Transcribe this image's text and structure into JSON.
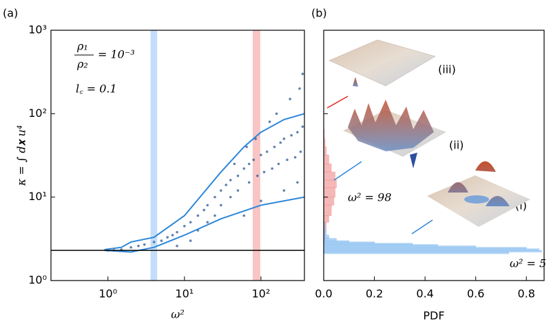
{
  "chart_data": [
    {
      "type": "scatter",
      "panel_label": "(a)",
      "x_label": "ω²",
      "y_label": "κ = ∫ d𝐱 u⁴",
      "annotations": {
        "numerator": "ρ₁",
        "denominator": "ρ₂",
        "rhs": "= 10⁻³",
        "lc": "l꜀ = 0.1"
      },
      "xscale": "log",
      "yscale": "log",
      "xlim": [
        0.18,
        370
      ],
      "ylim": [
        1,
        1000
      ],
      "xticks": [
        {
          "value": 1,
          "label": "10⁰"
        },
        {
          "value": 10,
          "label": "10¹"
        },
        {
          "value": 100,
          "label": "10²"
        }
      ],
      "yticks": [
        {
          "value": 1,
          "label": "10⁰"
        },
        {
          "value": 10,
          "label": "10¹"
        },
        {
          "value": 100,
          "label": "10²"
        },
        {
          "value": 1000,
          "label": "10³"
        }
      ],
      "hline": {
        "value": 2.3,
        "color": "#000000"
      },
      "bands": [
        {
          "x": [
            3.6,
            4.4
          ],
          "color": "#b5d6f7"
        },
        {
          "x": [
            78,
            98
          ],
          "color": "#f7b5b5"
        }
      ],
      "series": [
        {
          "type": "scatter",
          "color": "#1f4e8c",
          "x": [
            1,
            1.2,
            1.5,
            2,
            2.5,
            3,
            4,
            5,
            6,
            7,
            8,
            10,
            12,
            15,
            18,
            20,
            25,
            30,
            35,
            40,
            50,
            60,
            70,
            80,
            100,
            120,
            150,
            180,
            200,
            250,
            300,
            350,
            15,
            20,
            30,
            40,
            50,
            70,
            90,
            110,
            140,
            170,
            220,
            280,
            330,
            8,
            12,
            25,
            45,
            65,
            85,
            130,
            160,
            240,
            320,
            60,
            100,
            200,
            300,
            350
          ],
          "values": [
            2.3,
            2.3,
            2.35,
            2.5,
            2.6,
            2.7,
            2.9,
            3,
            3.3,
            3.5,
            3.8,
            4.5,
            5,
            6,
            7,
            8,
            10,
            12,
            14,
            16,
            18,
            22,
            25,
            28,
            32,
            35,
            40,
            45,
            50,
            55,
            60,
            70,
            4,
            5,
            8,
            10,
            12,
            15,
            18,
            20,
            22,
            25,
            28,
            30,
            35,
            2.6,
            3,
            6,
            25,
            40,
            50,
            80,
            100,
            150,
            200,
            6,
            9,
            12,
            15,
            300
          ]
        },
        {
          "type": "line",
          "color": "#2b86d9",
          "x": [
            0.9,
            1.5,
            2,
            4,
            10,
            30,
            60,
            100,
            200,
            370
          ],
          "values": [
            2.35,
            2.5,
            2.9,
            3.3,
            6,
            20,
            40,
            60,
            85,
            100
          ]
        },
        {
          "type": "line",
          "color": "#2b86d9",
          "x": [
            0.9,
            2,
            4,
            10,
            30,
            100,
            370
          ],
          "values": [
            2.3,
            2.2,
            2.5,
            3.5,
            5.5,
            8,
            10
          ]
        }
      ]
    },
    {
      "type": "histogram",
      "panel_label": "(b)",
      "x_label": "PDF",
      "orientation": "horizontal",
      "xlim": [
        0,
        0.87
      ],
      "xticks": [
        {
          "value": 0,
          "label": "0.0"
        },
        0.2,
        0.4,
        0.6,
        0.8
      ],
      "yscale": "log",
      "ylim": [
        1,
        1000
      ],
      "yticks": [
        1,
        10,
        100,
        1000
      ],
      "insets": [
        "(iii)",
        "(ii)",
        "(i)"
      ],
      "series": [
        {
          "name": "ω² = 98",
          "color": "#f08a8a",
          "bins": [
            3,
            4,
            5,
            6,
            8,
            10,
            13,
            16,
            20,
            25,
            32,
            40,
            50,
            65
          ],
          "values": [
            0.005,
            0.01,
            0.02,
            0.03,
            0.04,
            0.045,
            0.05,
            0.045,
            0.03,
            0.02,
            0.01,
            0.005,
            0.002
          ]
        },
        {
          "name": "ω² = 5",
          "color": "#7db8f0",
          "bins": [
            2.1,
            2.2,
            2.3,
            2.4,
            2.5,
            2.6,
            2.7,
            2.8,
            2.9,
            3.0,
            3.2,
            3.5,
            4,
            5
          ],
          "values": [
            0.73,
            0.86,
            0.85,
            0.8,
            0.6,
            0.45,
            0.35,
            0.2,
            0.1,
            0.05,
            0.02,
            0.01,
            0.005
          ]
        }
      ]
    }
  ]
}
